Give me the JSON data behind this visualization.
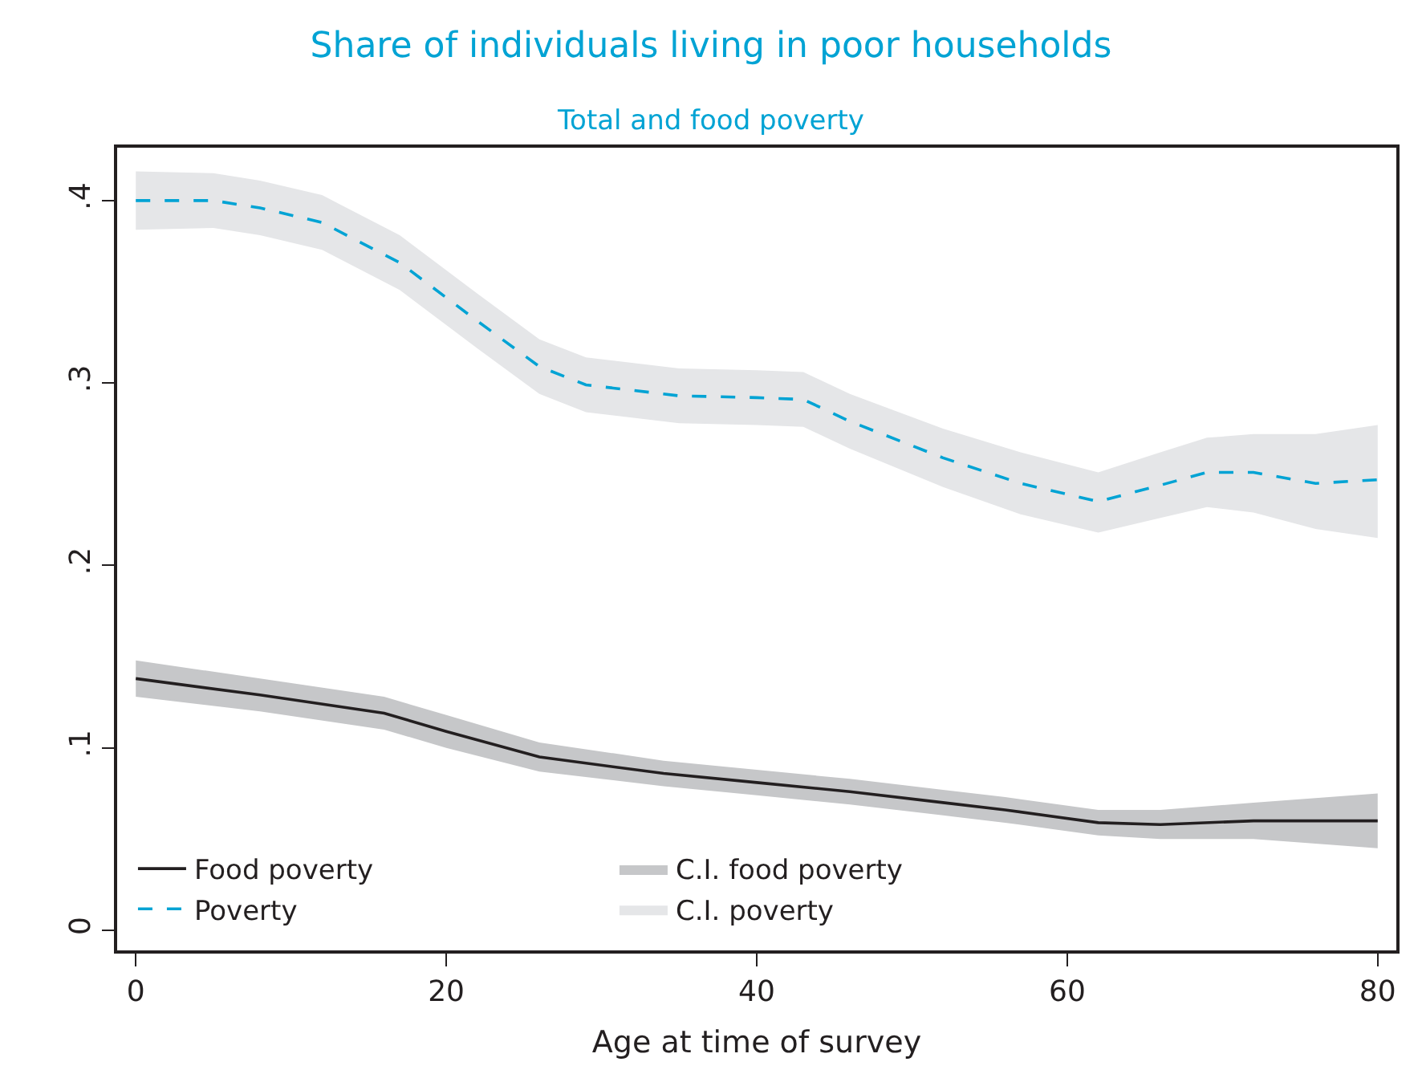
{
  "chart_data": {
    "type": "line",
    "title": "Share of individuals living in poor households",
    "subtitle": "Total and food poverty",
    "xlabel": "Age at time of survey",
    "xlim": [
      -1.2,
      81.2
    ],
    "xticks": [
      0,
      20,
      40,
      60,
      80
    ],
    "ylim": [
      -0.011,
      0.429
    ],
    "yticks": [
      0,
      {
        "value": 0.1,
        "label": ".1"
      },
      {
        "value": 0.2,
        "label": ".2"
      },
      {
        "value": 0.3,
        "label": ".3"
      },
      {
        "value": 0.4,
        "label": ".4"
      }
    ],
    "grid": false,
    "legend": "bottom left",
    "marker": "none",
    "series": [
      {
        "name": "Food poverty",
        "color": "#231f20",
        "line_style": "solid",
        "x": [
          0,
          8,
          16,
          20,
          26,
          34,
          40,
          46,
          52,
          56,
          62,
          66,
          72,
          80
        ],
        "values": [
          0.138,
          0.129,
          0.119,
          0.109,
          0.095,
          0.086,
          0.081,
          0.076,
          0.07,
          0.066,
          0.059,
          0.058,
          0.06,
          0.06
        ]
      },
      {
        "name": "C.I. food poverty",
        "type": "area",
        "color": "#c6c7c9",
        "x": [
          0,
          8,
          16,
          20,
          26,
          34,
          40,
          46,
          52,
          56,
          62,
          66,
          72,
          80
        ],
        "values": [
          null,
          null,
          null,
          null,
          null,
          null,
          null,
          null,
          null,
          null,
          null,
          null,
          null,
          null
        ],
        "lower": [
          0.128,
          0.12,
          0.11,
          0.1,
          0.087,
          0.079,
          0.074,
          0.069,
          0.063,
          0.059,
          0.052,
          0.05,
          0.05,
          0.045
        ],
        "upper": [
          0.148,
          0.138,
          0.128,
          0.118,
          0.103,
          0.093,
          0.088,
          0.083,
          0.077,
          0.073,
          0.066,
          0.066,
          0.07,
          0.075
        ]
      },
      {
        "name": "Poverty",
        "color": "#00a3d4",
        "line_style": "dashed",
        "x": [
          0,
          5,
          8,
          12,
          17,
          22,
          26,
          29,
          35,
          40,
          43,
          46,
          52,
          57,
          62,
          66,
          69,
          72,
          76,
          80
        ],
        "values": [
          0.4,
          0.4,
          0.396,
          0.388,
          0.366,
          0.334,
          0.309,
          0.299,
          0.293,
          0.292,
          0.291,
          0.279,
          0.259,
          0.245,
          0.235,
          0.244,
          0.251,
          0.251,
          0.245,
          0.247
        ]
      },
      {
        "name": "C.I. poverty",
        "type": "area",
        "color": "#e5e6e8",
        "x": [
          0,
          5,
          8,
          12,
          17,
          22,
          26,
          29,
          35,
          40,
          43,
          46,
          52,
          57,
          62,
          66,
          69,
          72,
          76,
          80
        ],
        "values": [
          null,
          null,
          null,
          null,
          null,
          null,
          null,
          null,
          null,
          null,
          null,
          null,
          null,
          null,
          null,
          null,
          null,
          null,
          null,
          null
        ],
        "lower": [
          0.384,
          0.385,
          0.381,
          0.373,
          0.351,
          0.319,
          0.294,
          0.284,
          0.278,
          0.277,
          0.276,
          0.264,
          0.243,
          0.228,
          0.218,
          0.226,
          0.232,
          0.229,
          0.22,
          0.215
        ],
        "upper": [
          0.416,
          0.415,
          0.411,
          0.403,
          0.381,
          0.349,
          0.324,
          0.314,
          0.308,
          0.307,
          0.306,
          0.294,
          0.275,
          0.262,
          0.251,
          0.262,
          0.27,
          0.272,
          0.272,
          0.277
        ]
      }
    ]
  }
}
